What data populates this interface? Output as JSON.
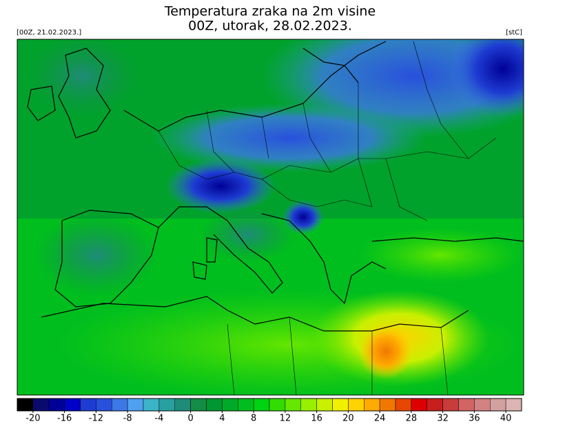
{
  "header": {
    "title_line1": "Temperatura zraka na 2m visine",
    "title_line2": "00Z, utorak, 28.02.2023.",
    "run_label": "[00Z, 21.02.2023.]",
    "unit_label": "[stC]"
  },
  "chart_data": {
    "type": "colorbar",
    "xlim": [
      -22,
      42
    ],
    "xticks": [
      -20,
      -16,
      -12,
      -8,
      -4,
      0,
      4,
      8,
      12,
      16,
      20,
      24,
      28,
      32,
      36,
      40
    ],
    "colors": [
      "#000000",
      "#0a0a6e",
      "#000096",
      "#0000c8",
      "#1e3cd2",
      "#2850dc",
      "#3c78e6",
      "#50a0f0",
      "#3cb4c8",
      "#28a0a0",
      "#1e8c78",
      "#148c46",
      "#009632",
      "#00aa28",
      "#00be1e",
      "#00d214",
      "#32dc00",
      "#64e600",
      "#96f000",
      "#c8f000",
      "#f0f000",
      "#ffd200",
      "#ffaa00",
      "#f07800",
      "#e64600",
      "#dc0000",
      "#c81e1e",
      "#c83c3c",
      "#d26464",
      "#d28282",
      "#d2a0a0",
      "#dcb4b4"
    ]
  }
}
